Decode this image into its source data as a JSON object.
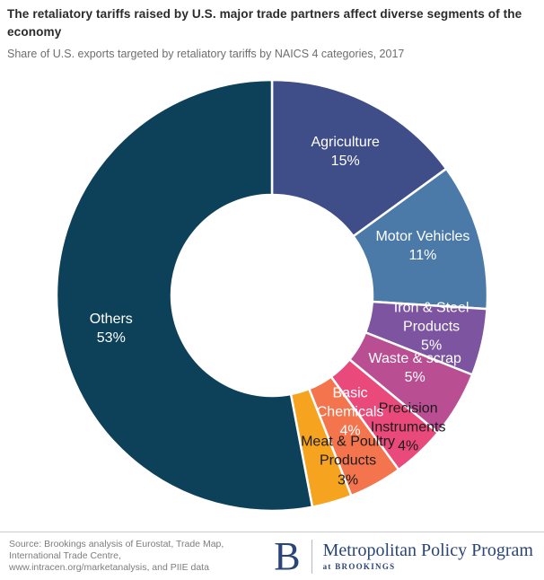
{
  "header": {
    "title": "The retaliatory tariffs raised by U.S. major trade partners affect diverse segments of the economy",
    "subtitle": "Share of U.S. exports targeted by retaliatory tariffs by NAICS 4 categories, 2017"
  },
  "chart_data": {
    "type": "pie",
    "subtype": "donut",
    "title": "The retaliatory tariffs raised by U.S. major trade partners affect diverse segments of the economy",
    "subtitle": "Share of U.S. exports targeted by retaliatory tariffs by NAICS 4 categories, 2017",
    "unit": "%",
    "start_angle_deg": 0,
    "direction": "clockwise",
    "hole": true,
    "legend": "none",
    "slices": [
      {
        "label": "Agriculture",
        "label_lines": [
          "Agriculture"
        ],
        "value": 15,
        "display": "15%",
        "color": "#3F4D88",
        "label_color": "#FFFFFF"
      },
      {
        "label": "Motor Vehicles",
        "label_lines": [
          "Motor Vehicles"
        ],
        "value": 11,
        "display": "11%",
        "color": "#4B7AA9",
        "label_color": "#FFFFFF"
      },
      {
        "label": "Iron & Steel Products",
        "label_lines": [
          "Iron & Steel",
          "Products"
        ],
        "value": 5,
        "display": "5%",
        "color": "#7C54A0",
        "label_color": "#FFFFFF"
      },
      {
        "label": "Waste & scrap",
        "label_lines": [
          "Waste & scrap"
        ],
        "value": 5,
        "display": "5%",
        "color": "#B94E92",
        "label_color": "#FFFFFF"
      },
      {
        "label": "Precision Instruments",
        "label_lines": [
          "Precision",
          "Instruments"
        ],
        "value": 4,
        "display": "4%",
        "color": "#E94A7B",
        "label_color": "#1C1C1C"
      },
      {
        "label": "Basic Chemicals",
        "label_lines": [
          "Basic",
          "Chemicals"
        ],
        "value": 4,
        "display": "4%",
        "color": "#F4744E",
        "label_color": "#FFFFFF"
      },
      {
        "label": "Meat & Poultry Products",
        "label_lines": [
          "Meat & Poultry",
          "Products"
        ],
        "value": 3,
        "display": "3%",
        "color": "#F6A41F",
        "label_color": "#1C1C1C"
      },
      {
        "label": "Others",
        "label_lines": [
          "Others"
        ],
        "value": 53,
        "display": "53%",
        "color": "#0D4159",
        "label_color": "#FFFFFF"
      }
    ]
  },
  "footer": {
    "source_lines": [
      "Source: Brookings analysis of Eurostat, Trade Map,",
      "International Trade Centre,",
      "www.intracen.org/marketanalysis, and PIIE data"
    ],
    "logo": {
      "mark": "B",
      "name": "Metropolitan Policy Program",
      "sub": "at BROOKINGS",
      "color": "#2A4577"
    }
  }
}
